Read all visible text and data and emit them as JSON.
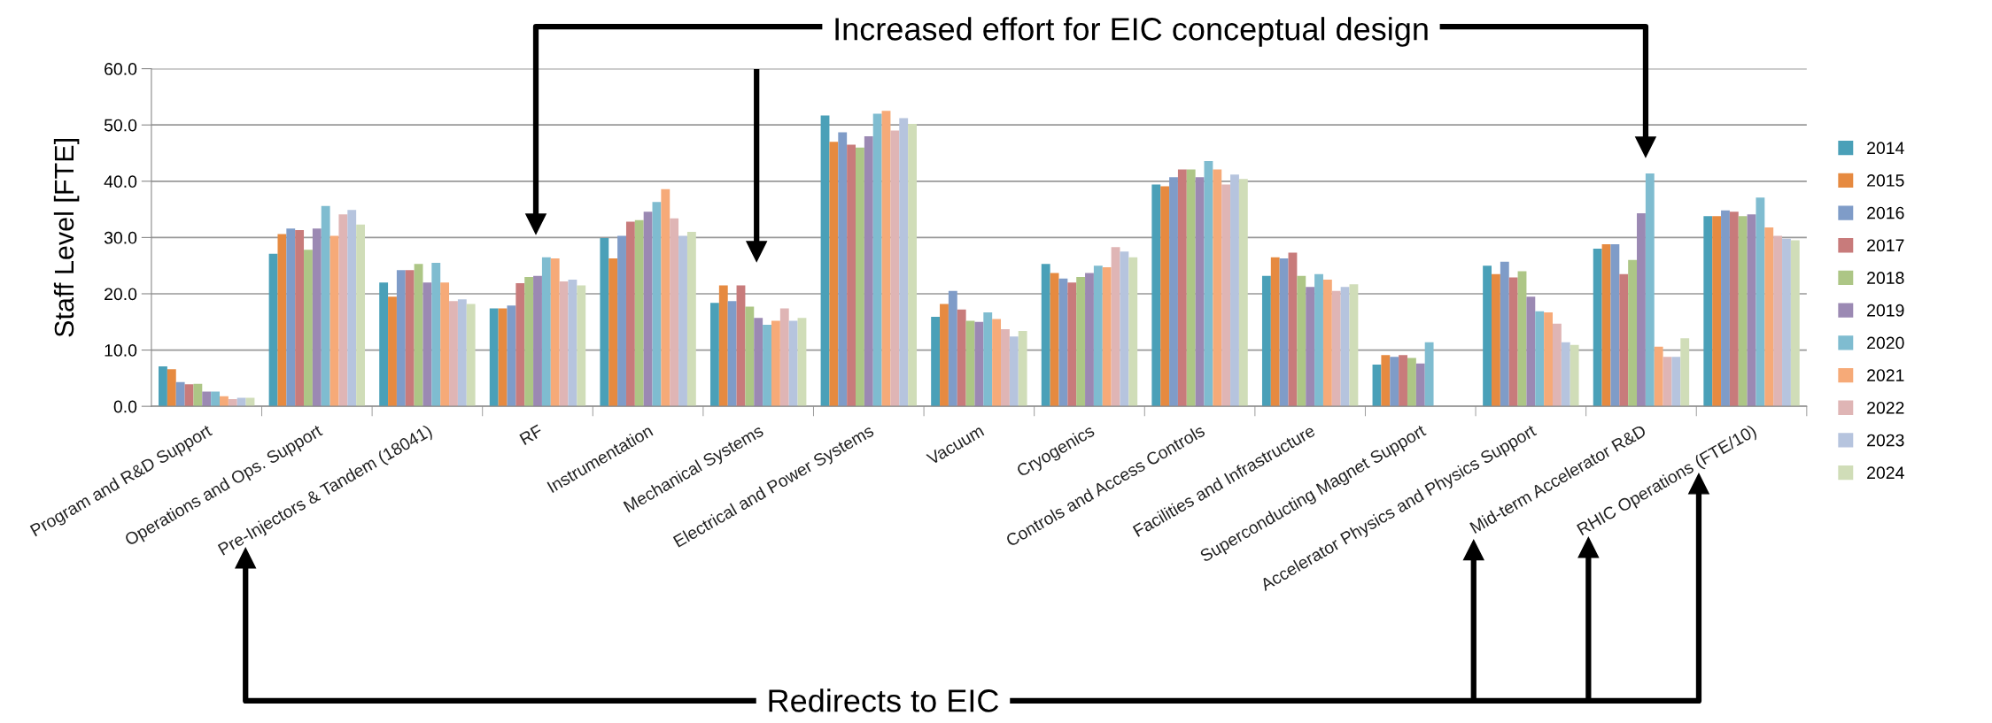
{
  "chart_data": {
    "type": "bar",
    "ylabel": "Staff Level [FTE]",
    "categories": [
      "Program and R&D Support",
      "Operations and Ops. Support",
      "Pre-Injectors & Tandem (18041)",
      "RF",
      "Instrumentation",
      "Mechanical Systems",
      "Electrical and Power Systems",
      "Vacuum",
      "Cryogenics",
      "Controls and Access Controls",
      "Facilities and Infrastructure",
      "Superconducting Magnet Support",
      "Accelerator Physics and Physics Support",
      "Mid-term Accelerator R&D",
      "RHIC Operations (FTE/10)"
    ],
    "series": [
      {
        "name": "2014",
        "color": "#4aa0b8",
        "values": [
          7.1,
          27.1,
          22.0,
          17.4,
          29.9,
          18.4,
          51.7,
          15.9,
          25.3,
          39.4,
          23.2,
          7.4,
          25.0,
          28.0,
          33.8
        ]
      },
      {
        "name": "2015",
        "color": "#e68a40",
        "values": [
          6.6,
          30.6,
          19.5,
          17.4,
          26.3,
          21.5,
          47.0,
          18.2,
          23.7,
          39.1,
          26.5,
          9.1,
          23.5,
          28.8,
          33.8
        ]
      },
      {
        "name": "2016",
        "color": "#7f9cc8",
        "values": [
          4.3,
          31.6,
          24.2,
          17.9,
          30.3,
          18.7,
          48.7,
          20.5,
          22.7,
          40.7,
          26.3,
          8.8,
          25.7,
          28.8,
          34.8
        ]
      },
      {
        "name": "2017",
        "color": "#c87b7b",
        "values": [
          3.9,
          31.3,
          24.2,
          21.9,
          32.8,
          21.5,
          46.5,
          17.2,
          22.0,
          42.1,
          27.3,
          9.1,
          22.9,
          23.5,
          34.6
        ]
      },
      {
        "name": "2018",
        "color": "#adc686",
        "values": [
          4.0,
          27.8,
          25.3,
          23.0,
          33.1,
          17.7,
          46.0,
          15.2,
          23.0,
          42.1,
          23.2,
          8.6,
          24.0,
          26.0,
          33.8
        ]
      },
      {
        "name": "2019",
        "color": "#9b89b3",
        "values": [
          2.6,
          31.6,
          22.0,
          23.2,
          34.6,
          15.7,
          48.0,
          15.0,
          23.7,
          40.7,
          21.2,
          7.6,
          19.5,
          34.3,
          34.1
        ]
      },
      {
        "name": "2020",
        "color": "#7fbcd0",
        "values": [
          2.6,
          35.6,
          25.5,
          26.5,
          36.3,
          14.5,
          52.0,
          16.7,
          25.0,
          43.6,
          23.5,
          11.4,
          16.9,
          41.4,
          37.1
        ]
      },
      {
        "name": "2021",
        "color": "#f6aa78",
        "values": [
          1.8,
          30.3,
          22.0,
          26.3,
          38.6,
          15.2,
          52.5,
          15.5,
          24.7,
          42.1,
          22.5,
          null,
          16.7,
          10.6,
          31.8
        ]
      },
      {
        "name": "2022",
        "color": "#dfb5b5",
        "values": [
          1.3,
          34.1,
          18.7,
          22.2,
          33.4,
          17.4,
          49.0,
          13.7,
          28.3,
          39.4,
          20.5,
          null,
          14.7,
          8.8,
          30.3
        ]
      },
      {
        "name": "2023",
        "color": "#b6c4de",
        "values": [
          1.5,
          34.9,
          19.0,
          22.5,
          30.3,
          15.2,
          51.2,
          12.4,
          27.5,
          41.2,
          21.2,
          null,
          11.4,
          8.8,
          29.8
        ]
      },
      {
        "name": "2024",
        "color": "#d0ddb8",
        "values": [
          1.5,
          32.3,
          18.2,
          21.5,
          31.0,
          15.7,
          50.2,
          13.4,
          26.5,
          40.4,
          21.7,
          null,
          10.9,
          12.1,
          29.5
        ]
      }
    ],
    "ylim": [
      0,
      60
    ],
    "yticks": [
      {
        "value": 0,
        "label": "0.0"
      },
      {
        "value": 10,
        "label": "10.0"
      },
      {
        "value": 20,
        "label": "20.0"
      },
      {
        "value": 30,
        "label": "30.0"
      },
      {
        "value": 40,
        "label": "40.0"
      },
      {
        "value": 50,
        "label": "50.0"
      },
      {
        "value": 60,
        "label": "60.0"
      }
    ],
    "grid": "y",
    "legend": "right",
    "annotations": [
      "Increased effort for EIC conceptual design",
      "Redirects to EIC"
    ]
  }
}
